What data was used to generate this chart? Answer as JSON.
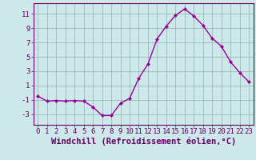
{
  "x": [
    0,
    1,
    2,
    3,
    4,
    5,
    6,
    7,
    8,
    9,
    10,
    11,
    12,
    13,
    14,
    15,
    16,
    17,
    18,
    19,
    20,
    21,
    22,
    23
  ],
  "y": [
    -0.5,
    -1.2,
    -1.1,
    -1.2,
    -1.1,
    -1.2,
    -2.0,
    -3.2,
    -3.2,
    -1.5,
    -0.8,
    2.0,
    4.0,
    7.5,
    9.3,
    10.8,
    11.7,
    10.7,
    9.4,
    7.6,
    6.5,
    4.3,
    2.8,
    1.5
  ],
  "line_color": "#990099",
  "marker": "D",
  "marker_size": 2,
  "bg_color": "#cce8e8",
  "grid_color": "#99bbbb",
  "xlabel": "Windchill (Refroidissement éolien,°C)",
  "ylim": [
    -4.5,
    12.5
  ],
  "yticks": [
    -3,
    -1,
    1,
    3,
    5,
    7,
    9,
    11
  ],
  "xlim": [
    -0.5,
    23.5
  ],
  "xticks": [
    0,
    1,
    2,
    3,
    4,
    5,
    6,
    7,
    8,
    9,
    10,
    11,
    12,
    13,
    14,
    15,
    16,
    17,
    18,
    19,
    20,
    21,
    22,
    23
  ],
  "xlabel_color": "#660066",
  "tick_color": "#660066",
  "axis_color": "#660066",
  "font_size_xlabel": 7.5,
  "font_size_ticks": 6.5,
  "linewidth": 1.0
}
